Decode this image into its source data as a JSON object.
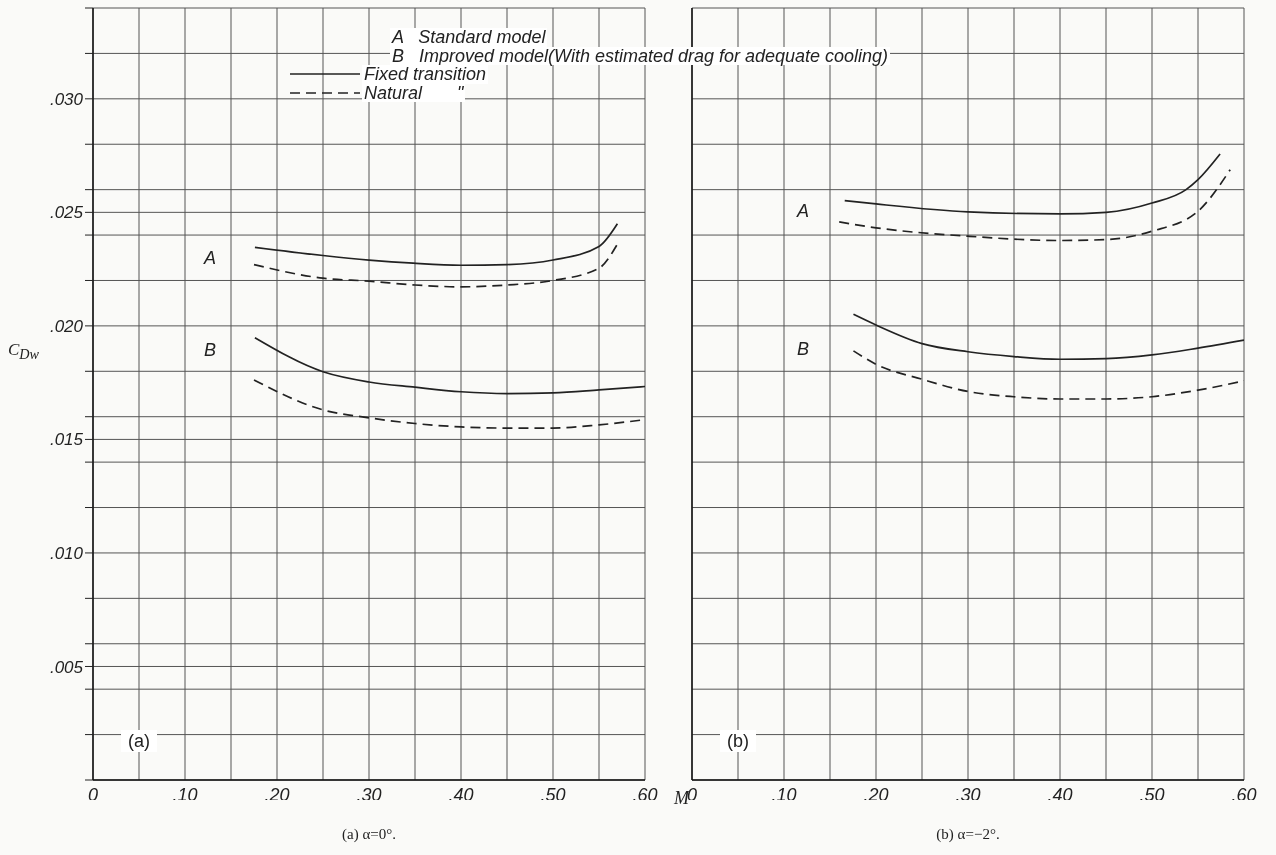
{
  "chart_data": [
    {
      "type": "line",
      "title": "(a) α=0°.",
      "xlabel": "M",
      "ylabel": "C$_{Dw}$",
      "xlim": [
        0,
        0.6
      ],
      "xticks": [
        {
          "value": 0,
          "label": "0"
        },
        {
          "value": 0.05,
          "label": null
        },
        {
          "value": 0.1,
          "label": ".10"
        },
        {
          "value": 0.15,
          "label": null
        },
        {
          "value": 0.2,
          "label": ".20"
        },
        {
          "value": 0.25,
          "label": null
        },
        {
          "value": 0.3,
          "label": ".30"
        },
        {
          "value": 0.35,
          "label": null
        },
        {
          "value": 0.4,
          "label": ".40"
        },
        {
          "value": 0.45,
          "label": null
        },
        {
          "value": 0.5,
          "label": ".50"
        },
        {
          "value": 0.55,
          "label": null
        },
        {
          "value": 0.6,
          "label": ".60"
        }
      ],
      "ylim": [
        0,
        0.034
      ],
      "yticks": [
        {
          "value": 0,
          "label": null
        },
        {
          "value": 0.002,
          "label": null
        },
        {
          "value": 0.004,
          "label": null
        },
        {
          "value": 0.005,
          "label": ".005"
        },
        {
          "value": 0.006,
          "label": null
        },
        {
          "value": 0.008,
          "label": null
        },
        {
          "value": 0.01,
          "label": ".010"
        },
        {
          "value": 0.012,
          "label": null
        },
        {
          "value": 0.014,
          "label": null
        },
        {
          "value": 0.015,
          "label": ".015"
        },
        {
          "value": 0.016,
          "label": null
        },
        {
          "value": 0.018,
          "label": null
        },
        {
          "value": 0.02,
          "label": ".020"
        },
        {
          "value": 0.022,
          "label": null
        },
        {
          "value": 0.024,
          "label": null
        },
        {
          "value": 0.025,
          "label": ".025"
        },
        {
          "value": 0.026,
          "label": null
        },
        {
          "value": 0.028,
          "label": null
        },
        {
          "value": 0.03,
          "label": ".030"
        },
        {
          "value": 0.032,
          "label": null
        },
        {
          "value": 0.034,
          "label": null
        }
      ],
      "grid": true,
      "series": [
        {
          "color": "#222222",
          "line_style": "solid",
          "x": [
            0.176,
            0.25,
            0.3,
            0.348,
            0.4,
            0.45,
            0.5,
            0.55,
            0.57
          ],
          "values": [
            0.02346,
            0.0231,
            0.0229,
            0.02276,
            0.02267,
            0.0227,
            0.0229,
            0.0235,
            0.0245
          ]
        },
        {
          "color": "#222222",
          "line_style": "dashed",
          "x": [
            0.175,
            0.25,
            0.3,
            0.35,
            0.4,
            0.45,
            0.5,
            0.55,
            0.57
          ],
          "values": [
            0.0227,
            0.0221,
            0.02197,
            0.0218,
            0.02172,
            0.0218,
            0.022,
            0.02254,
            0.0236
          ]
        },
        {
          "color": "#222222",
          "line_style": "solid",
          "x": [
            0.176,
            0.25,
            0.3,
            0.35,
            0.4,
            0.45,
            0.5,
            0.55,
            0.6
          ],
          "values": [
            0.01948,
            0.01798,
            0.01753,
            0.0173,
            0.0171,
            0.01702,
            0.01705,
            0.01718,
            0.01733
          ]
        },
        {
          "color": "#222222",
          "line_style": "dashed",
          "x": [
            0.175,
            0.25,
            0.3,
            0.35,
            0.4,
            0.45,
            0.5,
            0.55,
            0.6
          ],
          "values": [
            0.01762,
            0.0163,
            0.01595,
            0.0157,
            0.01555,
            0.0155,
            0.0155,
            0.01564,
            0.01587
          ]
        }
      ],
      "annotations": [
        "A",
        "B",
        "(a)",
        "A   Standard model",
        "B   Improved model(With estimated drag for adequate cooling)",
        "Fixed transition",
        "Natural       \""
      ]
    },
    {
      "type": "line",
      "title": "(b) α=−2°.",
      "xlim": [
        0,
        0.6
      ],
      "xticks": [
        {
          "value": 0,
          "label": "0"
        },
        {
          "value": 0.05,
          "label": null
        },
        {
          "value": 0.1,
          "label": ".10"
        },
        {
          "value": 0.15,
          "label": null
        },
        {
          "value": 0.2,
          "label": ".20"
        },
        {
          "value": 0.25,
          "label": null
        },
        {
          "value": 0.3,
          "label": ".30"
        },
        {
          "value": 0.35,
          "label": null
        },
        {
          "value": 0.4,
          "label": ".40"
        },
        {
          "value": 0.45,
          "label": null
        },
        {
          "value": 0.5,
          "label": ".50"
        },
        {
          "value": 0.55,
          "label": null
        },
        {
          "value": 0.6,
          "label": ".60"
        }
      ],
      "ylim": [
        0,
        0.034
      ],
      "yticks": [
        {
          "value": 0,
          "label": null
        },
        {
          "value": 0.002,
          "label": null
        },
        {
          "value": 0.004,
          "label": null
        },
        {
          "value": 0.006,
          "label": null
        },
        {
          "value": 0.008,
          "label": null
        },
        {
          "value": 0.01,
          "label": null
        },
        {
          "value": 0.012,
          "label": null
        },
        {
          "value": 0.014,
          "label": null
        },
        {
          "value": 0.016,
          "label": null
        },
        {
          "value": 0.018,
          "label": null
        },
        {
          "value": 0.02,
          "label": null
        },
        {
          "value": 0.022,
          "label": null
        },
        {
          "value": 0.024,
          "label": null
        },
        {
          "value": 0.026,
          "label": null
        },
        {
          "value": 0.028,
          "label": null
        },
        {
          "value": 0.03,
          "label": null
        },
        {
          "value": 0.032,
          "label": null
        },
        {
          "value": 0.034,
          "label": null
        }
      ],
      "tick_labels": "x",
      "grid": true,
      "series": [
        {
          "color": "#222222",
          "line_style": "solid",
          "x": [
            0.166,
            0.2,
            0.3,
            0.4,
            0.45,
            0.5,
            0.537,
            0.55,
            0.574
          ],
          "values": [
            0.02552,
            0.02537,
            0.02502,
            0.02493,
            0.025,
            0.02541,
            0.026,
            0.02644,
            0.02757
          ]
        },
        {
          "color": "#222222",
          "line_style": "dashed",
          "x": [
            0.16,
            0.2,
            0.3,
            0.4,
            0.45,
            0.5,
            0.55,
            0.585
          ],
          "values": [
            0.02458,
            0.02432,
            0.02395,
            0.02376,
            0.0238,
            0.02417,
            0.02505,
            0.02688
          ]
        },
        {
          "color": "#222222",
          "line_style": "solid",
          "x": [
            0.1755,
            0.2,
            0.25,
            0.3,
            0.35,
            0.4,
            0.45,
            0.5,
            0.55,
            0.6
          ],
          "values": [
            0.02051,
            0.02004,
            0.01922,
            0.01886,
            0.01865,
            0.01853,
            0.01856,
            0.01872,
            0.01902,
            0.01937
          ]
        },
        {
          "color": "#222222",
          "line_style": "dashed",
          "x": [
            0.1755,
            0.2,
            0.25,
            0.3,
            0.35,
            0.4,
            0.45,
            0.5,
            0.55,
            0.6
          ],
          "values": [
            0.0189,
            0.01831,
            0.01765,
            0.01711,
            0.01688,
            0.01678,
            0.01678,
            0.01688,
            0.01717,
            0.01758
          ]
        }
      ],
      "annotations": [
        "A",
        "B",
        "(b)"
      ]
    }
  ]
}
